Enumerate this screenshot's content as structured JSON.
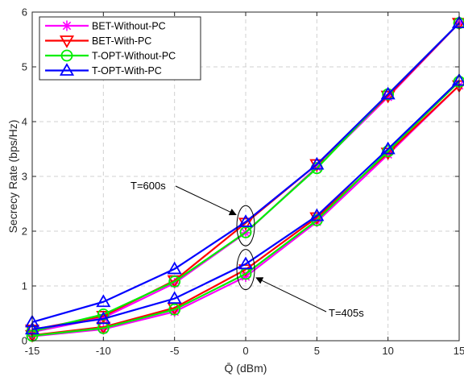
{
  "chart_data": {
    "type": "line",
    "xlabel": "Q̄ (dBm)",
    "ylabel": "Secrecy Rate (bps/Hz)",
    "x": [
      -15,
      -10,
      -5,
      0,
      5,
      10,
      15
    ],
    "xlim": [
      -15,
      15
    ],
    "ylim": [
      0,
      6
    ],
    "xticks": [
      -15,
      -10,
      -5,
      0,
      5,
      10,
      15
    ],
    "yticks": [
      0,
      1,
      2,
      3,
      4,
      5,
      6
    ],
    "grid": true,
    "legend_position": "top-left",
    "series": [
      {
        "name": "BET-Without-PC",
        "color": "#ff00ff",
        "marker": "asterisk",
        "values": [
          0.08,
          0.21,
          0.53,
          1.17,
          2.17,
          3.4,
          4.66
        ],
        "values_T600": [
          0.16,
          0.42,
          1.05,
          1.97,
          3.17,
          4.45,
          5.8
        ]
      },
      {
        "name": "BET-With-PC",
        "color": "#ff0000",
        "marker": "triangle-down",
        "values": [
          0.1,
          0.25,
          0.6,
          1.3,
          2.25,
          3.43,
          4.66
        ],
        "values_T600": [
          0.2,
          0.45,
          1.1,
          2.15,
          3.22,
          4.47,
          5.8
        ]
      },
      {
        "name": "T-OPT-Without-PC",
        "color": "#00ee00",
        "marker": "circle",
        "values": [
          0.09,
          0.23,
          0.57,
          1.22,
          2.2,
          3.46,
          4.73
        ],
        "values_T600": [
          0.17,
          0.48,
          1.08,
          1.98,
          3.15,
          4.5,
          5.8
        ]
      },
      {
        "name": "T-OPT-With-PC",
        "color": "#0000ff",
        "marker": "triangle-up",
        "values": [
          0.21,
          0.4,
          0.77,
          1.4,
          2.28,
          3.5,
          4.75
        ],
        "values_T600": [
          0.34,
          0.71,
          1.31,
          2.17,
          3.22,
          4.5,
          5.8
        ]
      }
    ],
    "annotations": [
      {
        "text": "T=600s"
      },
      {
        "text": "T=405s"
      }
    ]
  }
}
